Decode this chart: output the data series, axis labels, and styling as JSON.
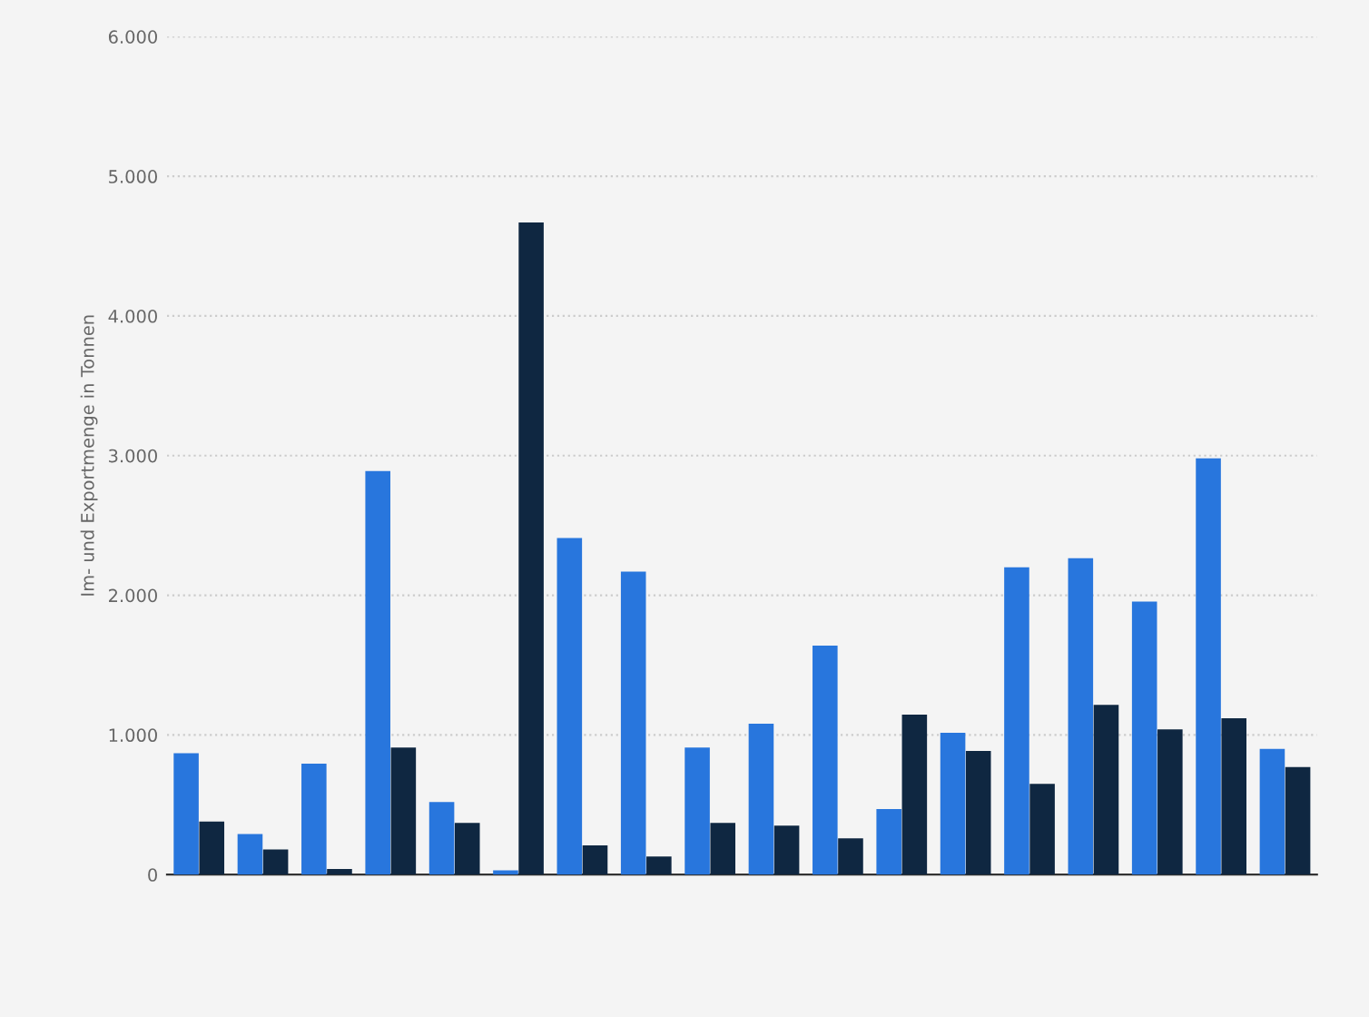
{
  "chart_data": {
    "type": "bar",
    "ylabel": "Im- und Exportmenge in Tonnen",
    "categories": [
      null,
      null,
      null,
      null,
      null,
      null,
      null,
      null,
      null,
      null,
      null,
      null,
      null,
      null,
      null,
      null,
      null,
      null
    ],
    "series": [
      {
        "color": "#2876dd",
        "values": [
          870,
          290,
          795,
          2890,
          520,
          30,
          2410,
          2170,
          910,
          1080,
          1640,
          470,
          1015,
          2200,
          2265,
          1955,
          2980,
          900
        ]
      },
      {
        "color": "#0f2741",
        "values": [
          380,
          180,
          40,
          910,
          370,
          4670,
          210,
          130,
          370,
          350,
          260,
          1145,
          885,
          650,
          1215,
          1040,
          1120,
          770
        ]
      }
    ],
    "ylim": [
      0,
      6000
    ],
    "yticks": [
      0,
      {
        "value": 1000,
        "label": "1.000"
      },
      {
        "value": 2000,
        "label": "2.000"
      },
      {
        "value": 3000,
        "label": "3.000"
      },
      {
        "value": 4000,
        "label": "4.000"
      },
      {
        "value": 5000,
        "label": "5.000"
      },
      {
        "value": 6000,
        "label": "6.000"
      }
    ],
    "grid": "y",
    "tick_labels": "y",
    "legend": false
  }
}
